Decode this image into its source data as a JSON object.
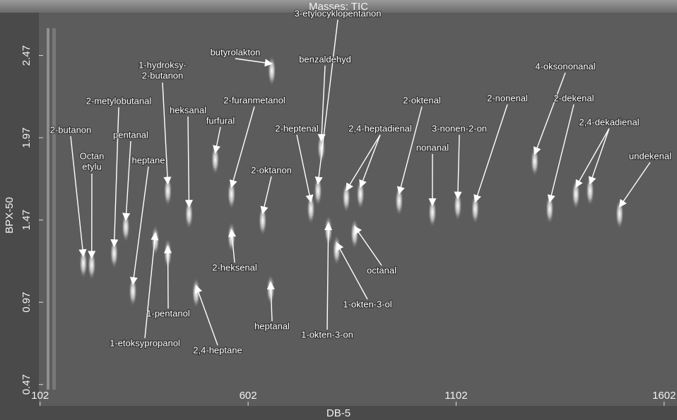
{
  "chart_data": {
    "type": "scatter",
    "title": "Masses: TIC",
    "x_label": "DB-5",
    "y_label": "BPX-50",
    "xlim": [
      99,
      1633
    ],
    "ylim": [
      0.34,
      2.73
    ],
    "xticks": [
      102,
      602,
      1102,
      1602
    ],
    "yticks": [
      0.47,
      0.97,
      1.47,
      1.97,
      2.47
    ],
    "color": "#ffffff",
    "annotations": [
      {
        "text": "butyrolakton",
        "points": [
          [
            659,
            2.42
          ]
        ]
      },
      {
        "text": "1-hydroksy-\n2-butanon",
        "points": [
          [
            409,
            1.69
          ]
        ]
      },
      {
        "text": "3-etylocyklopentanon",
        "points": [
          [
            770,
            1.69
          ]
        ]
      },
      {
        "text": "benzaldehyd",
        "points": [
          [
            778,
            1.95
          ]
        ]
      },
      {
        "text": "4-oksononanal",
        "points": [
          [
            1291,
            1.87
          ]
        ]
      },
      {
        "text": "2-metylobutanal",
        "points": [
          [
            280,
            1.31
          ]
        ]
      },
      {
        "text": "heksanal",
        "points": [
          [
            460,
            1.55
          ]
        ]
      },
      {
        "text": "2-furanmetanol",
        "points": [
          [
            562,
            1.67
          ]
        ]
      },
      {
        "text": "2-oktenal",
        "points": [
          [
            965,
            1.63
          ]
        ]
      },
      {
        "text": "2-nonenal",
        "points": [
          [
            1148,
            1.58
          ]
        ]
      },
      {
        "text": "2-dekenal",
        "points": [
          [
            1327,
            1.58
          ]
        ]
      },
      {
        "text": "2-butanon",
        "points": [
          [
            206,
            1.25
          ]
        ]
      },
      {
        "text": "pentanal",
        "points": [
          [
            308,
            1.47
          ]
        ]
      },
      {
        "text": "furfural",
        "points": [
          [
            523,
            1.88
          ]
        ]
      },
      {
        "text": "2-heptenal",
        "points": [
          [
            753,
            1.58
          ]
        ]
      },
      {
        "text": "2,4-heptadienal",
        "points": [
          [
            838,
            1.65
          ],
          [
            872,
            1.67
          ]
        ]
      },
      {
        "text": "2,4-dekadienal",
        "points": [
          [
            1390,
            1.67
          ],
          [
            1424,
            1.69
          ]
        ]
      },
      {
        "text": "Octan\netylu",
        "points": [
          [
            226,
            1.24
          ]
        ]
      },
      {
        "text": "heptane",
        "points": [
          [
            325,
            1.08
          ]
        ]
      },
      {
        "text": "3-nonen-2-on",
        "points": [
          [
            1106,
            1.6
          ]
        ]
      },
      {
        "text": "nonanal",
        "points": [
          [
            1045,
            1.56
          ]
        ]
      },
      {
        "text": "undekenal",
        "points": [
          [
            1495,
            1.55
          ]
        ]
      },
      {
        "text": "2-oktanon",
        "points": [
          [
            637,
            1.51
          ]
        ]
      },
      {
        "text": "2-heksenal",
        "points": [
          [
            562,
            1.41
          ]
        ]
      },
      {
        "text": "octanal",
        "points": [
          [
            858,
            1.43
          ]
        ]
      },
      {
        "text": "1-pentanol",
        "points": [
          [
            409,
            1.31
          ]
        ]
      },
      {
        "text": "1-etoksypropanol",
        "points": [
          [
            379,
            1.39
          ]
        ]
      },
      {
        "text": "1-okten-3-ol",
        "points": [
          [
            815,
            1.33
          ]
        ]
      },
      {
        "text": "heptanal",
        "points": [
          [
            656,
            1.09
          ]
        ]
      },
      {
        "text": "1-okten-3-on",
        "points": [
          [
            795,
            1.45
          ]
        ]
      },
      {
        "text": "2,4-heptane",
        "points": [
          [
            477,
            1.07
          ]
        ]
      }
    ]
  }
}
